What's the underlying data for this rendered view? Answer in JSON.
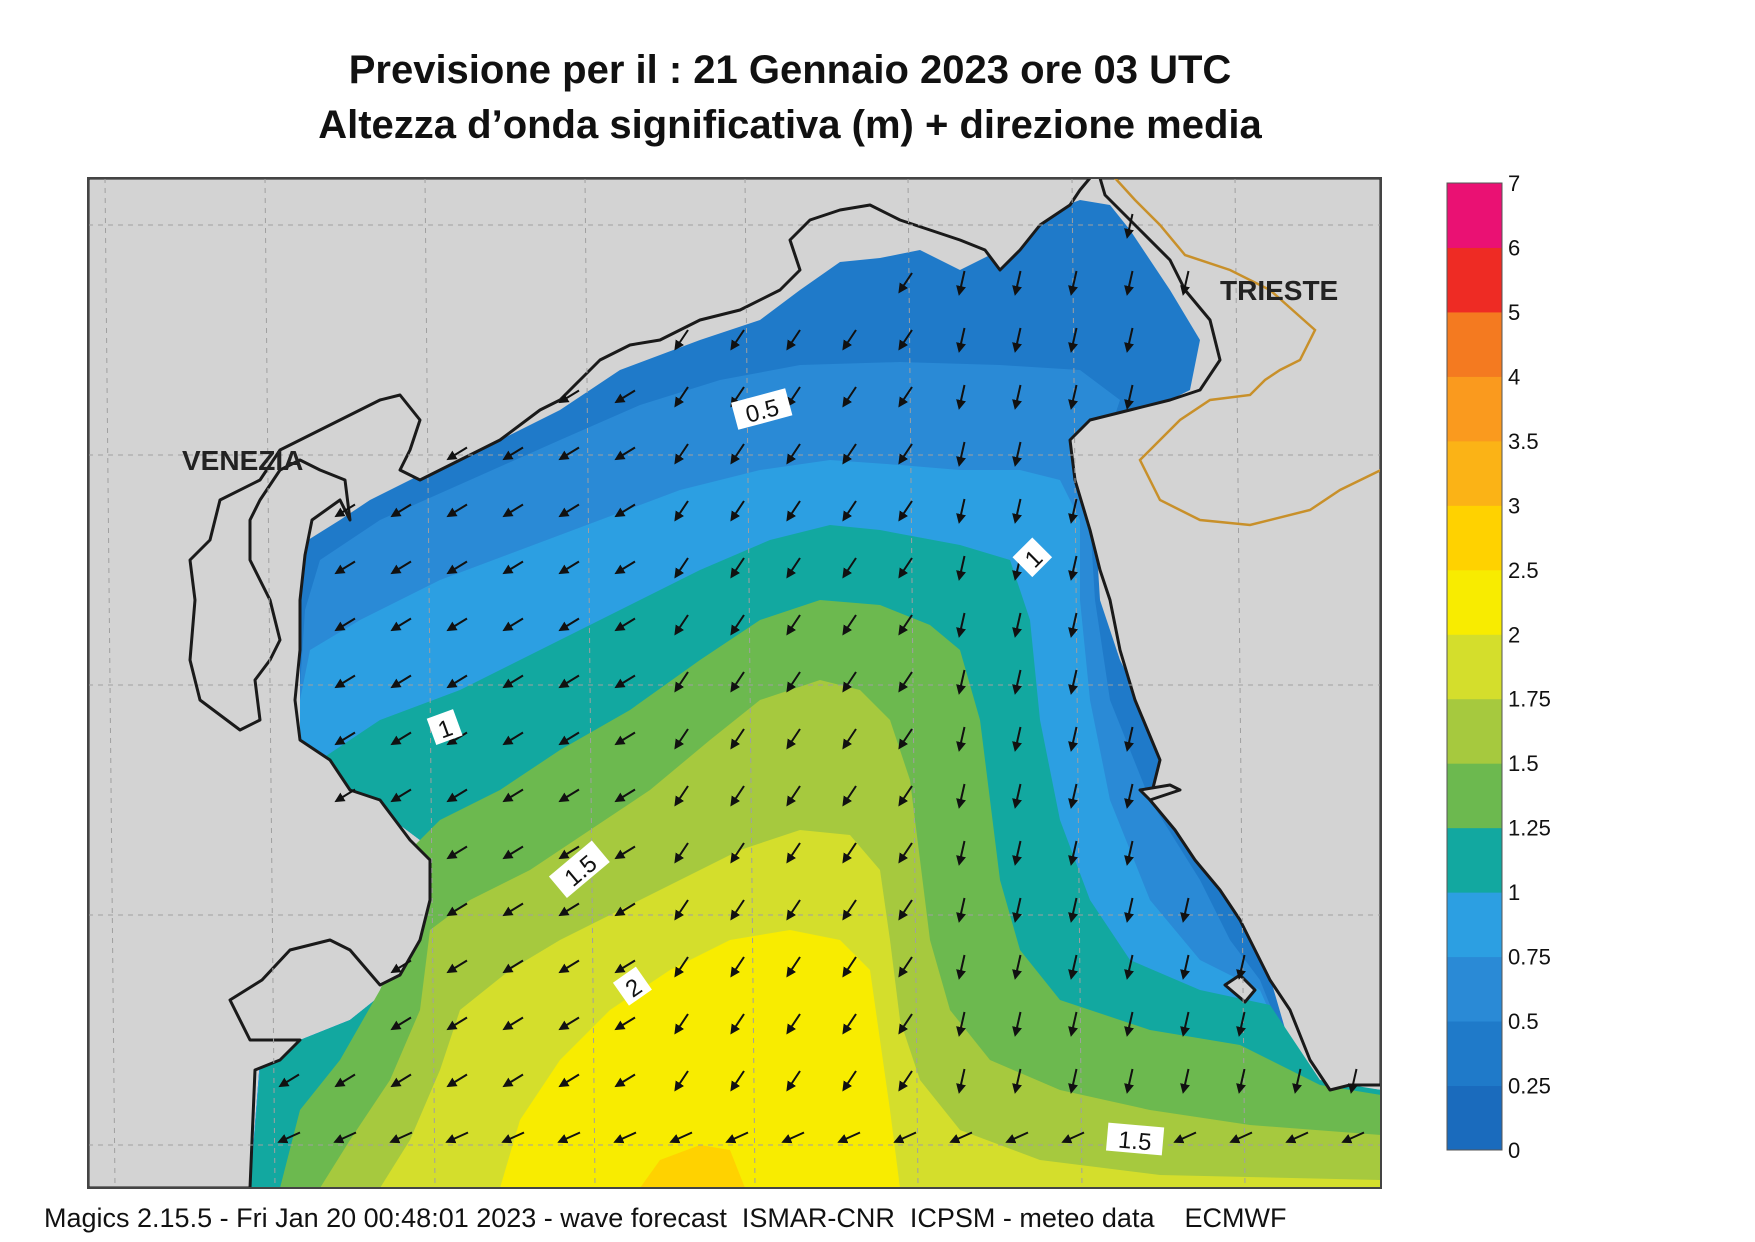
{
  "title": {
    "line1": "Previsione per il  :  21  Gennaio  2023   ore 03 UTC",
    "line2": "Altezza d’onda significativa (m) + direzione media"
  },
  "cities": {
    "venezia": "VENEZIA",
    "trieste": "TRIESTE"
  },
  "contour_labels": [
    "0.5",
    "1",
    "1",
    "1.5",
    "2",
    "1.5"
  ],
  "colorbar": {
    "levels": [
      "0",
      "0.25",
      "0.5",
      "0.75",
      "1",
      "1.25",
      "1.5",
      "1.75",
      "2",
      "2.5",
      "3",
      "3.5",
      "4",
      "5",
      "6",
      "7"
    ],
    "colors": [
      "#1a6bbd",
      "#1f7ac9",
      "#2a8ad6",
      "#2c9fe2",
      "#12a8a0",
      "#6cb94f",
      "#a6c93e",
      "#d4de2c",
      "#f8ec00",
      "#ffd200",
      "#fbb316",
      "#fa9a1e",
      "#f47a20",
      "#ee2b24",
      "#ea1173"
    ]
  },
  "colors": {
    "land": "#d3d3d3",
    "coast": "#1a1a1a",
    "border": "#c8902a",
    "grid": "#a0a0a0"
  },
  "footer": "Magics 2.15.5 - Fri Jan 20 00:48:01 2023 - wave forecast  ISMAR-CNR  ICPSM - meteo data    ECMWF"
}
